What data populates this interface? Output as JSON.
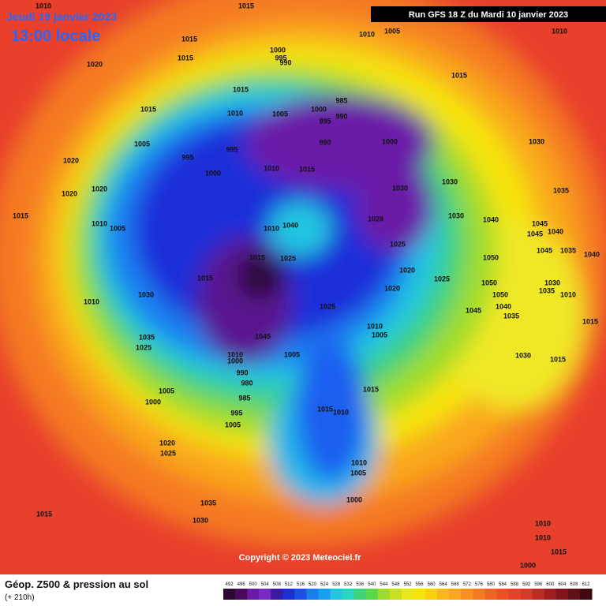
{
  "header": {
    "date": "Jeudi 19 janvier 2023",
    "time": "13:00 locale",
    "run": "Run GFS 18 Z du Mardi 10 janvier 2023"
  },
  "isobar_labels": [
    "1010",
    "1015",
    "1010",
    "1005",
    "1010",
    "1015",
    "1015",
    "1000",
    "995",
    "990",
    "1020",
    "1015",
    "1015",
    "1015",
    "1010",
    "1005",
    "1000",
    "985",
    "990",
    "995",
    "990",
    "1000",
    "1005",
    "995",
    "995",
    "1030",
    "1020",
    "1010",
    "1015",
    "1000",
    "1030",
    "1020",
    "1020",
    "1030",
    "1035",
    "1015",
    "1010",
    "1005",
    "1040",
    "1010",
    "1028",
    "1030",
    "1040",
    "1045",
    "1045",
    "1040",
    "1025",
    "1015",
    "1025",
    "1050",
    "1045",
    "1035",
    "1040",
    "1020",
    "1015",
    "1025",
    "1050",
    "1030",
    "1035",
    "1010",
    "1030",
    "1020",
    "1050",
    "1010",
    "1025",
    "1040",
    "1045",
    "1035",
    "1015",
    "1010",
    "1005",
    "1045",
    "1035",
    "1025",
    "1005",
    "1010",
    "1000",
    "1030",
    "1015",
    "990",
    "980",
    "985",
    "1015",
    "1005",
    "1000",
    "995",
    "1015",
    "1010",
    "1005",
    "1020",
    "1025",
    "1010",
    "1005",
    "1000",
    "1035",
    "1015",
    "1030",
    "1010",
    "1010",
    "1000",
    "1015"
  ],
  "footer": {
    "copyright": "Copyright © 2023 Meteociel.fr",
    "title": "Géop. Z500 & pression au sol",
    "lead": "(+ 210h)"
  },
  "colorbar_labels": [
    "492",
    "496",
    "500",
    "504",
    "508",
    "512",
    "516",
    "520",
    "524",
    "528",
    "532",
    "536",
    "540",
    "544",
    "548",
    "552",
    "556",
    "560",
    "564",
    "568",
    "572",
    "576",
    "580",
    "584",
    "588",
    "592",
    "596",
    "600",
    "604",
    "608",
    "612"
  ]
}
